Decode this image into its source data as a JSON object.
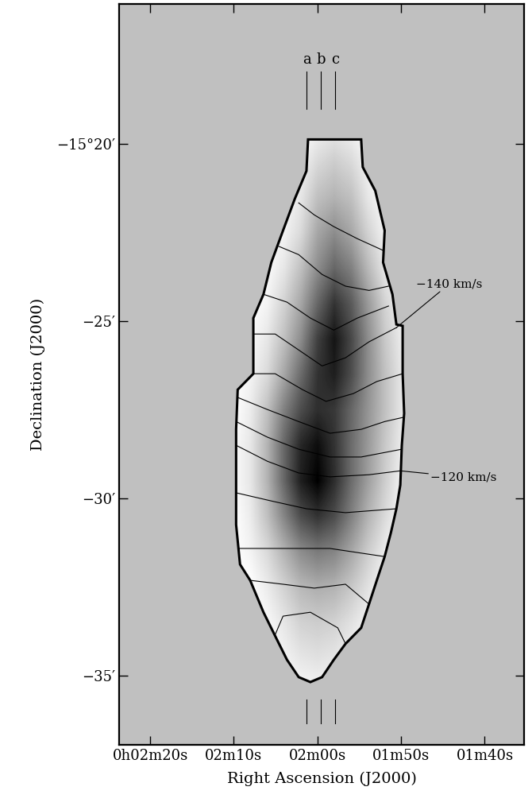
{
  "chart_data": {
    "type": "contour_map",
    "xlabel": "Right Ascension (J2000)",
    "ylabel": "Declination (J2000)",
    "xlim": [
      143.7,
      95.3
    ],
    "ylim": [
      -36.95,
      -16.05
    ],
    "xticks": [
      {
        "value": 140,
        "label": "0h02m20s"
      },
      {
        "value": 130,
        "label": "02m10s"
      },
      {
        "value": 120,
        "label": "02m00s"
      },
      {
        "value": 110,
        "label": "01m50s"
      },
      {
        "value": 100,
        "label": "01m40s"
      }
    ],
    "yticks": [
      {
        "value": -20,
        "label": "−15°20′"
      },
      {
        "value": -25,
        "label": "−25′"
      },
      {
        "value": -30,
        "label": "−30′"
      },
      {
        "value": -35,
        "label": "−35′"
      }
    ],
    "image": {
      "ra": [
        108,
        110,
        112,
        114,
        116,
        118,
        120,
        122,
        124,
        126,
        128,
        130
      ],
      "dec": [
        -19.5,
        -20.5,
        -21.5,
        -22.5,
        -23.5,
        -24.5,
        -25.5,
        -26.5,
        -27.5,
        -28.5,
        -29.5,
        -30.5,
        -31.5,
        -32.5,
        -33.5,
        -34.5,
        -35.5
      ],
      "values": [
        [
          0,
          0,
          0,
          0,
          5,
          8,
          5,
          0,
          0,
          0,
          0,
          0
        ],
        [
          0,
          0,
          0,
          5,
          15,
          20,
          15,
          5,
          0,
          0,
          0,
          0
        ],
        [
          0,
          0,
          2,
          10,
          25,
          30,
          25,
          10,
          2,
          0,
          0,
          0
        ],
        [
          0,
          0,
          5,
          18,
          35,
          45,
          35,
          15,
          5,
          0,
          0,
          0
        ],
        [
          0,
          2,
          10,
          28,
          50,
          60,
          45,
          25,
          10,
          2,
          0,
          0
        ],
        [
          0,
          5,
          18,
          40,
          65,
          80,
          60,
          35,
          18,
          5,
          0,
          0
        ],
        [
          0,
          8,
          22,
          45,
          72,
          92,
          75,
          45,
          25,
          10,
          2,
          0
        ],
        [
          0,
          10,
          25,
          45,
          70,
          88,
          80,
          58,
          35,
          15,
          5,
          0
        ],
        [
          0,
          10,
          25,
          42,
          60,
          78,
          82,
          70,
          50,
          25,
          8,
          0
        ],
        [
          0,
          8,
          22,
          40,
          58,
          80,
          95,
          85,
          60,
          30,
          10,
          2
        ],
        [
          0,
          5,
          20,
          38,
          58,
          82,
          100,
          88,
          60,
          30,
          10,
          2
        ],
        [
          0,
          3,
          15,
          30,
          50,
          70,
          80,
          70,
          48,
          25,
          8,
          0
        ],
        [
          0,
          0,
          8,
          20,
          35,
          48,
          52,
          45,
          30,
          15,
          5,
          0
        ],
        [
          0,
          0,
          3,
          12,
          22,
          30,
          32,
          28,
          18,
          8,
          0,
          0
        ],
        [
          0,
          0,
          0,
          5,
          12,
          18,
          20,
          18,
          10,
          3,
          0,
          0
        ],
        [
          0,
          0,
          0,
          0,
          5,
          10,
          12,
          10,
          5,
          0,
          0,
          0
        ],
        [
          0,
          0,
          0,
          0,
          0,
          2,
          3,
          2,
          0,
          0,
          0,
          0
        ]
      ]
    },
    "outline": {
      "ra": [
        121.12,
        114.77,
        114.58,
        113.08,
        111.96,
        112.15,
        111.03,
        110.56,
        109.81,
        109.81,
        109.63,
        109.91,
        110.09,
        110.56,
        111.21,
        111.96,
        112.9,
        113.83,
        114.77,
        116.64,
        118.04,
        119.44,
        120.84,
        122.24,
        123.64,
        125.05,
        126.45,
        128.04,
        129.25,
        129.72,
        129.72,
        129.72,
        129.53,
        127.66,
        127.66,
        126.45,
        125.51,
        124.11,
        122.71,
        121.31
      ],
      "dec": [
        -19.87,
        -19.87,
        -20.65,
        -21.32,
        -22.44,
        -23.34,
        -24.24,
        -25.09,
        -25.13,
        -26.48,
        -27.6,
        -28.5,
        -29.62,
        -30.29,
        -30.96,
        -31.64,
        -32.31,
        -32.98,
        -33.65,
        -34.1,
        -34.55,
        -35.04,
        -35.18,
        -35.04,
        -34.55,
        -33.88,
        -33.21,
        -32.31,
        -31.86,
        -30.74,
        -29.62,
        -28.05,
        -26.93,
        -26.48,
        -24.91,
        -24.24,
        -23.34,
        -22.44,
        -21.55,
        -20.76
      ]
    },
    "contours": [
      {
        "level": -155,
        "ra": [
          122.24,
          120.37,
          118.04,
          115.23,
          112.15
        ],
        "dec": [
          -21.66,
          -22.0,
          -22.33,
          -22.67,
          -23.0
        ]
      },
      {
        "level": -150,
        "ra": [
          124.58,
          122.24,
          119.44,
          116.64,
          113.83,
          111.5
        ],
        "dec": [
          -22.89,
          -23.12,
          -23.68,
          -24.01,
          -24.13,
          -24.01
        ]
      },
      {
        "level": -145,
        "ra": [
          126.45,
          123.64,
          120.84,
          118.04,
          115.23,
          111.5
        ],
        "dec": [
          -24.24,
          -24.46,
          -24.91,
          -25.25,
          -24.91,
          -24.57
        ]
      },
      {
        "level": -140,
        "ra": [
          127.66,
          125.05,
          122.24,
          119.44,
          116.64,
          113.83,
          110.56
        ],
        "dec": [
          -25.36,
          -25.36,
          -25.81,
          -26.26,
          -26.03,
          -25.58,
          -25.18
        ]
      },
      {
        "level": -135,
        "ra": [
          127.66,
          125.05,
          121.78,
          118.97,
          115.7,
          112.9,
          109.81
        ],
        "dec": [
          -26.48,
          -26.48,
          -26.93,
          -27.26,
          -27.04,
          -26.7,
          -26.48
        ]
      },
      {
        "level": -130,
        "ra": [
          129.53,
          125.98,
          122.24,
          118.5,
          114.77,
          111.96,
          109.72
        ],
        "dec": [
          -27.15,
          -27.49,
          -27.83,
          -28.16,
          -28.05,
          -27.83,
          -27.71
        ]
      },
      {
        "level": -125,
        "ra": [
          129.72,
          125.98,
          122.24,
          118.5,
          114.77,
          109.91
        ],
        "dec": [
          -27.83,
          -28.27,
          -28.61,
          -28.83,
          -28.83,
          -28.61
        ]
      },
      {
        "level": -120,
        "ra": [
          129.72,
          125.98,
          122.24,
          118.5,
          113.83,
          110.09
        ],
        "dec": [
          -28.5,
          -28.95,
          -29.28,
          -29.39,
          -29.33,
          -29.22
        ]
      },
      {
        "level": -115,
        "ra": [
          129.72,
          125.51,
          121.31,
          116.64,
          110.56
        ],
        "dec": [
          -29.84,
          -30.07,
          -30.29,
          -30.4,
          -30.29
        ]
      },
      {
        "level": -110,
        "ra": [
          129.44,
          125.98,
          122.24,
          118.5,
          111.96
        ],
        "dec": [
          -31.41,
          -31.41,
          -31.41,
          -31.41,
          -31.64
        ]
      },
      {
        "level": -105,
        "ra": [
          128.04,
          124.11,
          120.37,
          116.64,
          113.83
        ],
        "dec": [
          -32.31,
          -32.42,
          -32.53,
          -32.42,
          -32.98
        ]
      },
      {
        "level": -100,
        "ra": [
          125.51,
          124.11,
          120.84,
          117.57,
          116.64
        ],
        "dec": [
          -34.1,
          -33.32,
          -33.21,
          -33.65,
          -34.1
        ]
      }
    ],
    "annotations": [
      {
        "text": "−140 km/s",
        "level": -140
      },
      {
        "text": "−120 km/s",
        "level": -120
      }
    ],
    "slices": [
      {
        "label": "a",
        "ra": 121.3
      },
      {
        "label": "b",
        "ra": 119.6
      },
      {
        "label": "c",
        "ra": 117.85
      }
    ]
  }
}
